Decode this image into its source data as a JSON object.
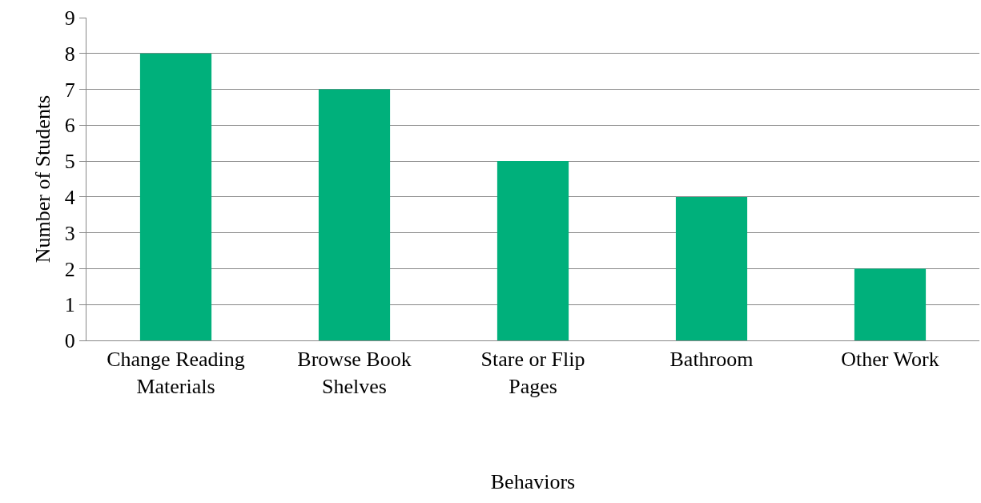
{
  "chart_data": {
    "type": "bar",
    "xlabel": "Behaviors",
    "ylabel": "Number of Students",
    "categories": [
      "Change Reading Materials",
      "Browse Book Shelves",
      "Stare or Flip Pages",
      "Bathroom",
      "Other Work"
    ],
    "values": [
      8,
      7,
      5,
      4,
      2
    ],
    "color": "#00b07b",
    "ylim": [
      0,
      9
    ],
    "yticks": [
      0,
      1,
      2,
      3,
      4,
      5,
      6,
      7,
      8,
      9
    ],
    "grid": "y"
  }
}
